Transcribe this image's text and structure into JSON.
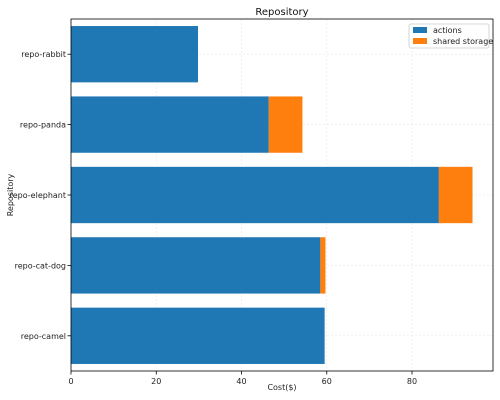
{
  "chart_data": {
    "type": "bar",
    "orientation": "horizontal",
    "stacked": true,
    "title": "Repository",
    "xlabel": "Cost($)",
    "ylabel": "Repository",
    "categories": [
      "repo-camel",
      "repo-cat-dog",
      "repo-elephant",
      "repo-panda",
      "repo-rabbit"
    ],
    "series": [
      {
        "name": "actions",
        "values": [
          59.5,
          58.5,
          86.3,
          46.4,
          29.8
        ],
        "color": "#1f77b4"
      },
      {
        "name": "shared storage",
        "values": [
          0,
          1.2,
          7.9,
          7.9,
          0
        ],
        "color": "#ff7f0e"
      }
    ],
    "xlim": [
      0,
      99
    ],
    "xticks": [
      0,
      20,
      40,
      60,
      80
    ],
    "grid": true,
    "legend_position": "top-right"
  }
}
